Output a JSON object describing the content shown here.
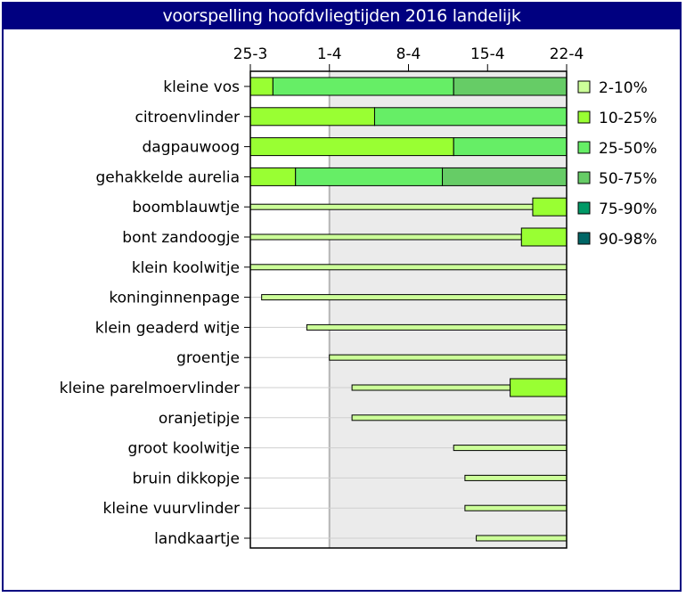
{
  "chart_data": {
    "type": "bar",
    "orientation": "horizontal-stacked",
    "title": "voorspelling hoofdvliegtijden 2016 landelijk",
    "x_ticks": [
      "25-3",
      "1-4",
      "8-4",
      "15-4",
      "22-4"
    ],
    "x_range_days": [
      0,
      28
    ],
    "shaded_from_day": 7,
    "categories": [
      "kleine vos",
      "citroenvlinder",
      "dagpauwoog",
      "gehakkelde aurelia",
      "boomblauwtje",
      "bont zandoogje",
      "klein koolwitje",
      "koninginnenpage",
      "klein geaderd witje",
      "groentje",
      "kleine parelmoervlinder",
      "oranjetipje",
      "groot koolwitje",
      "bruin dikkopje",
      "kleine vuurvlinder",
      "landkaartje"
    ],
    "segments": [
      [
        {
          "cls": "10-25%",
          "from": 0,
          "to": 2
        },
        {
          "cls": "25-50%",
          "from": 2,
          "to": 18
        },
        {
          "cls": "50-75%",
          "from": 18,
          "to": 28
        }
      ],
      [
        {
          "cls": "10-25%",
          "from": 0,
          "to": 11
        },
        {
          "cls": "25-50%",
          "from": 11,
          "to": 28
        }
      ],
      [
        {
          "cls": "10-25%",
          "from": 0,
          "to": 18
        },
        {
          "cls": "25-50%",
          "from": 18,
          "to": 28
        }
      ],
      [
        {
          "cls": "10-25%",
          "from": 0,
          "to": 4
        },
        {
          "cls": "25-50%",
          "from": 4,
          "to": 17
        },
        {
          "cls": "50-75%",
          "from": 17,
          "to": 28
        }
      ],
      [
        {
          "cls": "2-10%",
          "from": 0,
          "to": 25
        },
        {
          "cls": "10-25%",
          "from": 25,
          "to": 28
        }
      ],
      [
        {
          "cls": "2-10%",
          "from": 0,
          "to": 24
        },
        {
          "cls": "10-25%",
          "from": 24,
          "to": 28
        }
      ],
      [
        {
          "cls": "2-10%",
          "from": 0,
          "to": 28
        }
      ],
      [
        {
          "cls": "2-10%",
          "from": 1,
          "to": 28
        }
      ],
      [
        {
          "cls": "2-10%",
          "from": 5,
          "to": 28
        }
      ],
      [
        {
          "cls": "2-10%",
          "from": 7,
          "to": 28
        }
      ],
      [
        {
          "cls": "2-10%",
          "from": 9,
          "to": 23
        },
        {
          "cls": "10-25%",
          "from": 23,
          "to": 28
        }
      ],
      [
        {
          "cls": "2-10%",
          "from": 9,
          "to": 28
        }
      ],
      [
        {
          "cls": "2-10%",
          "from": 18,
          "to": 28
        }
      ],
      [
        {
          "cls": "2-10%",
          "from": 19,
          "to": 28
        }
      ],
      [
        {
          "cls": "2-10%",
          "from": 19,
          "to": 28
        }
      ],
      [
        {
          "cls": "2-10%",
          "from": 20,
          "to": 28
        }
      ]
    ],
    "legend": [
      {
        "label": "2-10%",
        "color": "#ccff99"
      },
      {
        "label": "10-25%",
        "color": "#99ff33"
      },
      {
        "label": "25-50%",
        "color": "#66ee66"
      },
      {
        "label": "50-75%",
        "color": "#66cc66"
      },
      {
        "label": "75-90%",
        "color": "#009966"
      },
      {
        "label": "90-98%",
        "color": "#006666"
      }
    ],
    "legend_position": "right",
    "grid": true
  }
}
